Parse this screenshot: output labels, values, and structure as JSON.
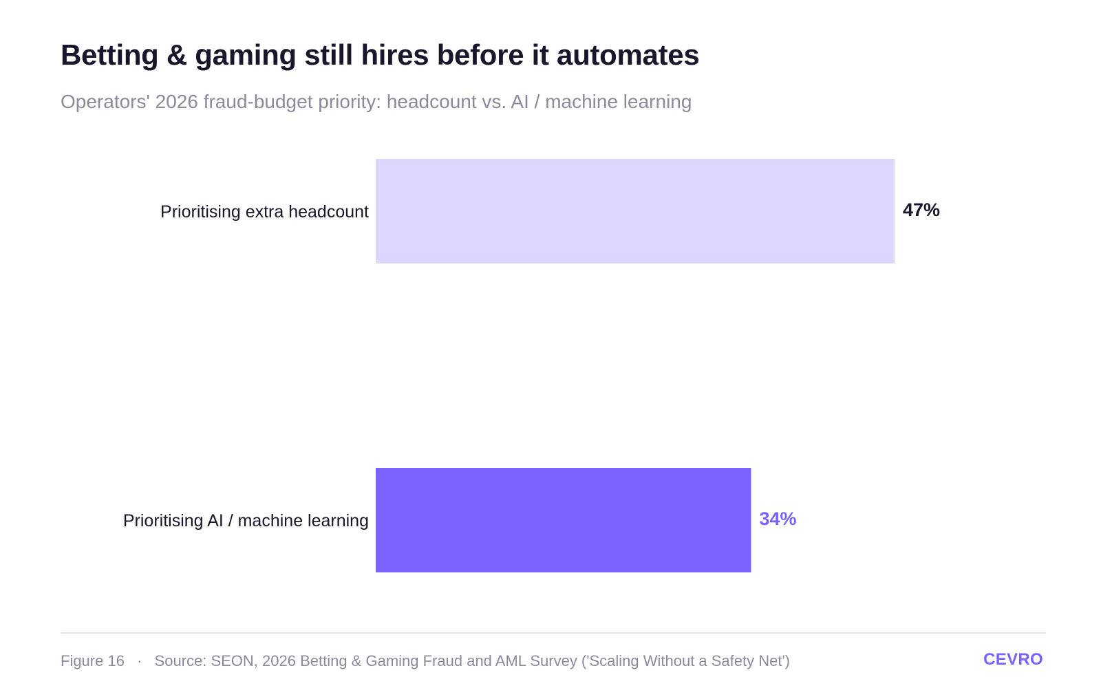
{
  "header": {
    "title": "Betting & gaming still hires before it automates",
    "subtitle": "Operators' 2026 fraud-budget priority: headcount vs. AI / machine learning"
  },
  "chart_data": {
    "type": "bar",
    "orientation": "horizontal",
    "title": "Betting & gaming still hires before it automates",
    "subtitle": "Operators' 2026 fraud-budget priority: headcount vs. AI / machine learning",
    "categories": [
      "Prioritising extra headcount",
      "Prioritising AI / machine learning"
    ],
    "values": [
      47,
      34
    ],
    "value_labels": [
      "47%",
      "34%"
    ],
    "unit": "%",
    "bar_colors": [
      "#ddd6ff",
      "#7b61ff"
    ],
    "label_colors": [
      "#17162b",
      "#7b61ff"
    ],
    "grid": false,
    "legend": "none"
  },
  "footer": {
    "figure": "Figure 16",
    "separator": "·",
    "source": "Source: SEON, 2026 Betting & Gaming Fraud and AML Survey ('Scaling Without a Safety Net')",
    "brand": "CEVRO",
    "brand_color": "#7b61ff"
  }
}
